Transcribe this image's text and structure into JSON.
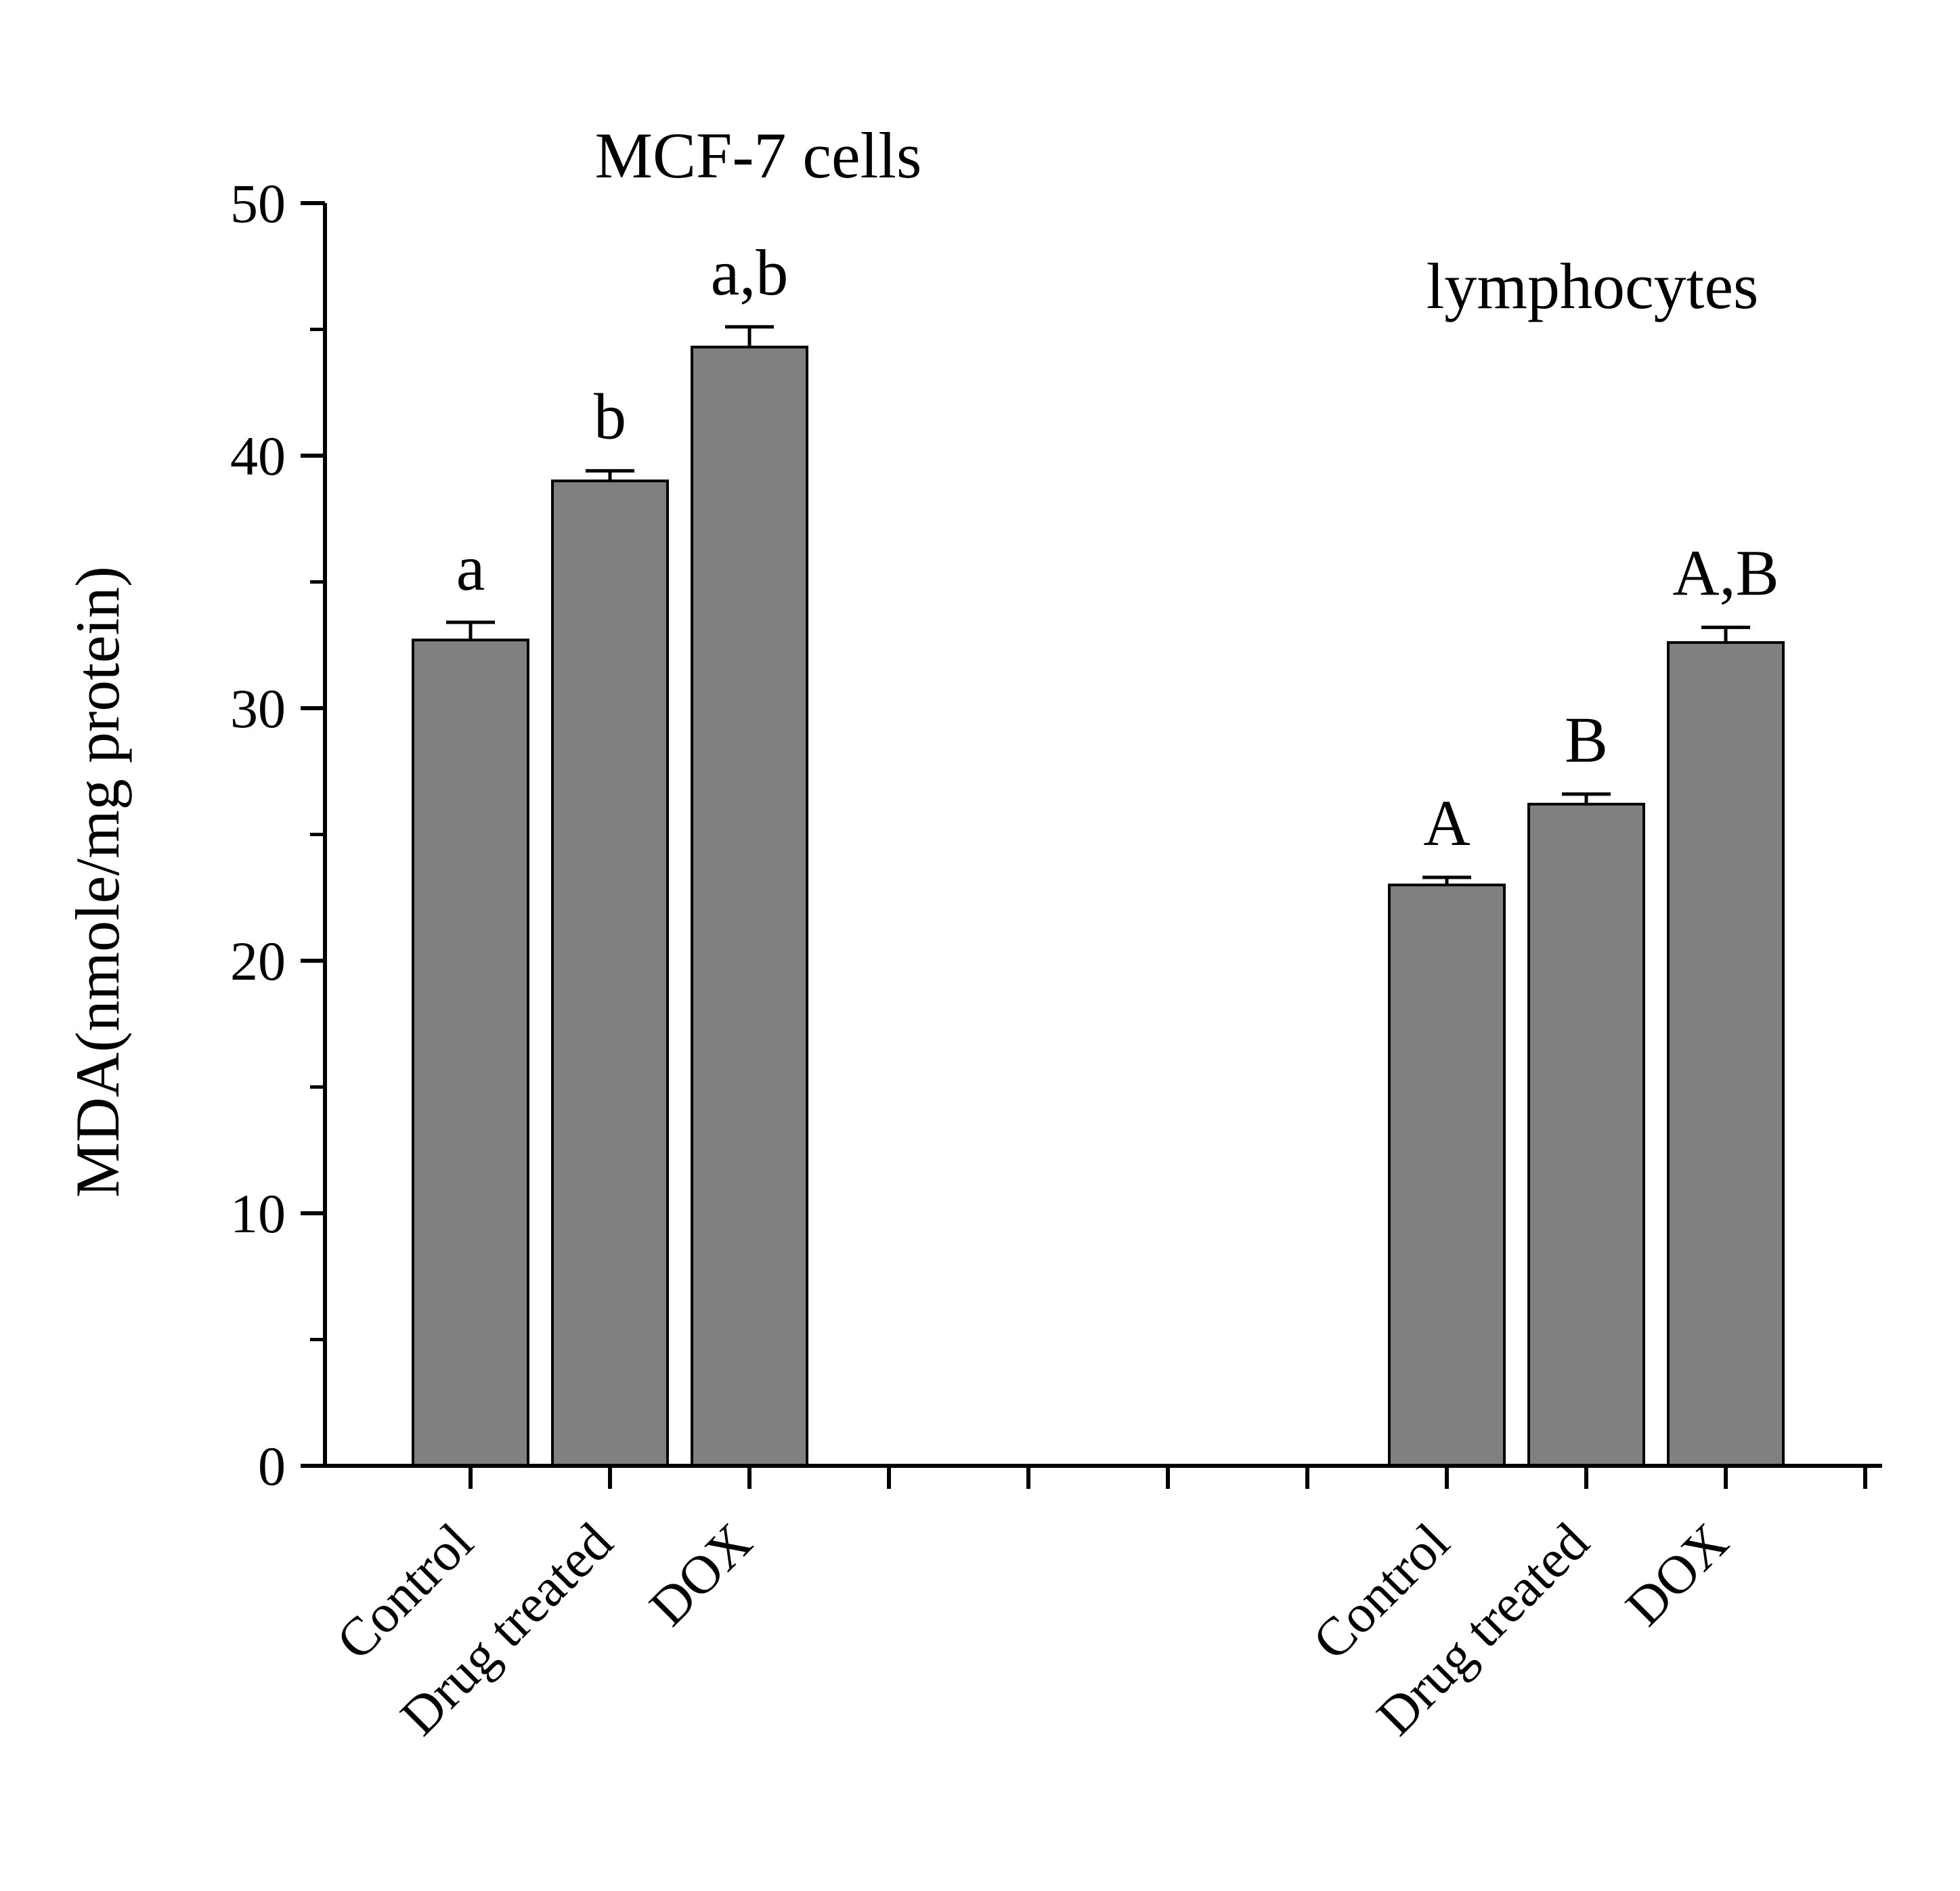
{
  "chart_data": {
    "type": "bar",
    "title": "",
    "ylabel": "MDA(nmole/mg protein)",
    "xlabel": "",
    "ylim": [
      0,
      50
    ],
    "yticks": [
      0,
      10,
      20,
      30,
      40,
      50
    ],
    "y_minor_step": 5,
    "grid": false,
    "legend_position": "none",
    "background_color": "#ffffff",
    "bar_fill_color": "#808080",
    "bar_edge_color": "#000000",
    "axis_color": "#000000",
    "categories": [
      "Control",
      "Drug treated",
      "DOX"
    ],
    "groups": [
      {
        "title": "MCF-7 cells",
        "slots": [
          0,
          1,
          2
        ],
        "values": [
          32.7,
          39.0,
          44.3
        ],
        "errors": [
          0.7,
          0.4,
          0.8
        ],
        "sig_labels": [
          "a",
          "b",
          "a,b"
        ]
      },
      {
        "title": "lymphocytes",
        "slots": [
          7,
          8,
          9
        ],
        "values": [
          23.0,
          26.2,
          32.6
        ],
        "errors": [
          0.3,
          0.4,
          0.6
        ],
        "sig_labels": [
          "A",
          "B",
          "A,B"
        ]
      }
    ]
  }
}
